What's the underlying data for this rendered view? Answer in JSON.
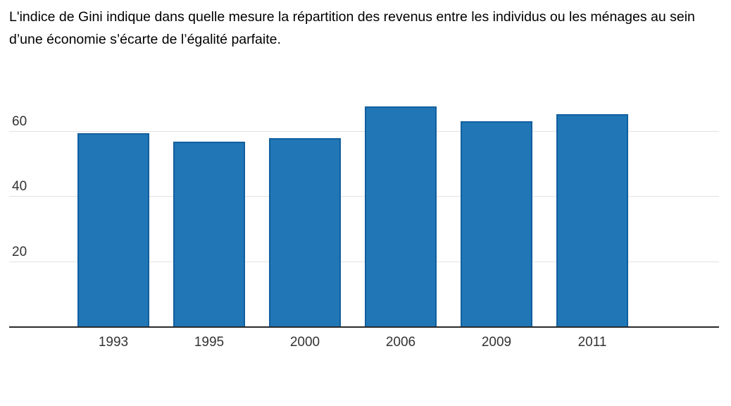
{
  "chart_data": {
    "type": "bar",
    "title": "L'indice de Gini indique dans quelle mesure la répartition des revenus entre les individus ou les ménages au sein d’une économie s’écarte de l’égalité parfaite.",
    "categories": [
      "1993",
      "1995",
      "2000",
      "2006",
      "2009",
      "2011"
    ],
    "values": [
      59.3,
      56.6,
      57.8,
      67.4,
      63.0,
      65.0
    ],
    "xlabel": "",
    "ylabel": "",
    "yticks": [
      20,
      40,
      60
    ],
    "ylim": [
      0,
      72
    ],
    "grid": true,
    "legend": false,
    "colors": {
      "bar_fill": "#2177b6",
      "bar_border": "#115f9e",
      "gridline": "#e2e2e2",
      "axis_line": "#2a2a2a",
      "tick_label": "#333333",
      "text": "#000000"
    }
  }
}
